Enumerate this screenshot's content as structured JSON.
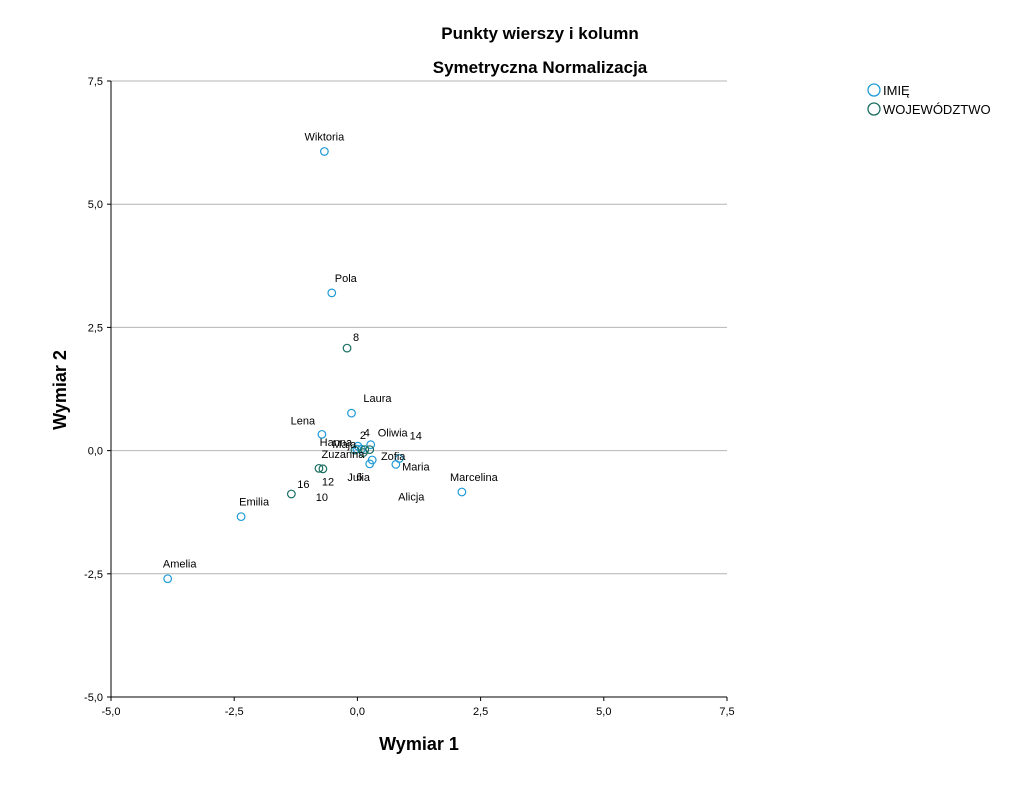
{
  "chart_data": {
    "type": "scatter",
    "title": "Punkty wierszy i kolumn",
    "subtitle": "Symetryczna Normalizacja",
    "xlabel": "Wymiar 1",
    "ylabel": "Wymiar 2",
    "xlim": [
      -5,
      7.5
    ],
    "ylim": [
      -5,
      7.5
    ],
    "xticks": [
      -5,
      -2.5,
      0,
      2.5,
      5,
      7.5
    ],
    "yticks": [
      -5,
      -2.5,
      0,
      2.5,
      5,
      7.5
    ],
    "xtick_labels": [
      "-5,0",
      "-2,5",
      "0,0",
      "2,5",
      "5,0",
      "7,5"
    ],
    "ytick_labels": [
      "-5,0",
      "-2,5",
      "0,0",
      "2,5",
      "5,0",
      "7,5"
    ],
    "grid": "horizontal",
    "legend_position": "top-right",
    "series": [
      {
        "name": "IMIĘ",
        "color": "#1f9bd6",
        "points": [
          {
            "label": "Wiktoria",
            "x": -0.67,
            "y": 6.07
          },
          {
            "label": "Pola",
            "x": -0.52,
            "y": 3.2
          },
          {
            "label": "Laura",
            "x": -0.12,
            "y": 0.76
          },
          {
            "label": "Lena",
            "x": -0.72,
            "y": 0.33
          },
          {
            "label": "Maja",
            "x": 0.08,
            "y": 0.03
          },
          {
            "label": "Oliwia",
            "x": 0.27,
            "y": 0.12
          },
          {
            "label": "Hanna",
            "x": 0.01,
            "y": 0.09
          },
          {
            "label": "Zofia",
            "x": 0.3,
            "y": -0.19
          },
          {
            "label": "Zuzanna",
            "x": -0.01,
            "y": 0.03
          },
          {
            "label": "Julia",
            "x": 0.25,
            "y": -0.27
          },
          {
            "label": "Alicja",
            "x": 0.85,
            "y": -0.16
          },
          {
            "label": "Maria",
            "x": 0.78,
            "y": -0.28
          },
          {
            "label": "Marcelina",
            "x": 2.12,
            "y": -0.84
          },
          {
            "label": "Emilia",
            "x": -2.36,
            "y": -1.34
          },
          {
            "label": "Amelia",
            "x": -3.85,
            "y": -2.6
          }
        ]
      },
      {
        "name": "WOJEWÓDZTWO",
        "color": "#1a6e62",
        "points": [
          {
            "label": "8",
            "x": -0.21,
            "y": 2.08
          },
          {
            "label": "2",
            "x": -0.05,
            "y": 0.01
          },
          {
            "label": "4",
            "x": 0.15,
            "y": 0.02
          },
          {
            "label": "14",
            "x": 0.25,
            "y": 0.02
          },
          {
            "label": "10",
            "x": -0.7,
            "y": -0.37
          },
          {
            "label": "6",
            "x": 0.12,
            "y": -0.04
          },
          {
            "label": "12",
            "x": -0.78,
            "y": -0.36
          },
          {
            "label": "16",
            "x": -1.34,
            "y": -0.88
          }
        ]
      }
    ]
  }
}
